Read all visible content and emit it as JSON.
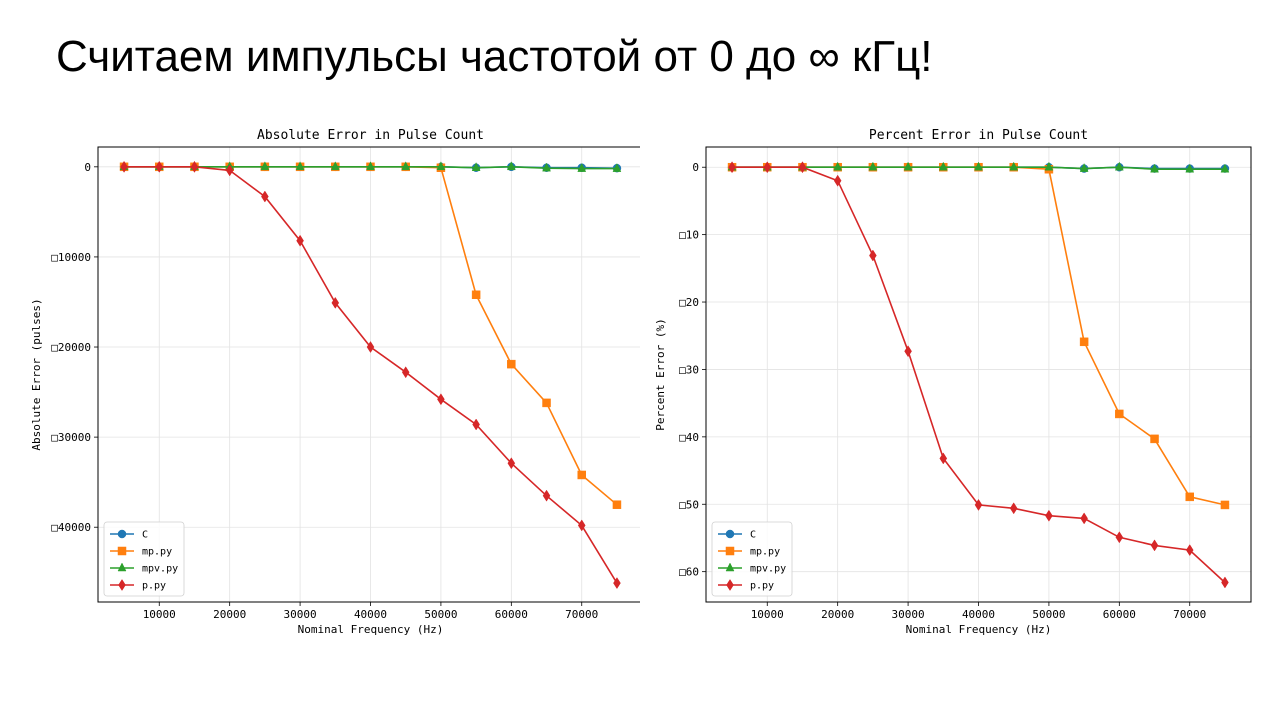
{
  "slide": {
    "title": "Считаем импульсы частотой от 0 до ∞ кГц!"
  },
  "colors": {
    "C": "#1f77b4",
    "mp.py": "#ff7f0e",
    "mpv.py": "#2ca02c",
    "p.py": "#d62728"
  },
  "chart_data": [
    {
      "type": "line",
      "title": "Absolute Error in Pulse Count",
      "xlabel": "Nominal Frequency (Hz)",
      "ylabel": "Absolute Error (pulses)",
      "xlim": [
        1300,
        78700
      ],
      "ylim": [
        -48300,
        2200
      ],
      "xticks": [
        10000,
        20000,
        30000,
        40000,
        50000,
        60000,
        70000
      ],
      "xtick_labels": [
        "10000",
        "20000",
        "30000",
        "40000",
        "50000",
        "60000",
        "70000"
      ],
      "yticks": [
        0,
        -10000,
        -20000,
        -30000,
        -40000
      ],
      "ytick_labels": [
        "0",
        "□10000",
        "□20000",
        "□30000",
        "□40000"
      ],
      "grid": true,
      "legend_position": "lower-left",
      "x": [
        5000,
        10000,
        15000,
        20000,
        25000,
        30000,
        35000,
        40000,
        45000,
        50000,
        55000,
        60000,
        65000,
        70000,
        75000
      ],
      "series": [
        {
          "name": "C",
          "marker": "circle",
          "values": [
            0,
            0,
            0,
            0,
            0,
            0,
            0,
            0,
            0,
            0,
            -100,
            0,
            -100,
            -100,
            -150
          ]
        },
        {
          "name": "mp.py",
          "marker": "square",
          "values": [
            0,
            0,
            0,
            0,
            0,
            0,
            0,
            0,
            0,
            -100,
            -14200,
            -21900,
            -26200,
            -34200,
            -37500
          ]
        },
        {
          "name": "mpv.py",
          "marker": "triangle",
          "values": [
            0,
            0,
            0,
            0,
            0,
            0,
            0,
            0,
            0,
            0,
            -100,
            0,
            -150,
            -200,
            -200
          ]
        },
        {
          "name": "p.py",
          "marker": "diamond",
          "values": [
            0,
            0,
            0,
            -400,
            -3300,
            -8200,
            -15100,
            -20000,
            -22800,
            -25800,
            -28600,
            -32900,
            -36500,
            -39800,
            -46200
          ]
        }
      ]
    },
    {
      "type": "line",
      "title": "Percent Error in Pulse Count",
      "xlabel": "Nominal Frequency (Hz)",
      "ylabel": "Percent Error (%)",
      "xlim": [
        1300,
        78700
      ],
      "ylim": [
        -64.5,
        3
      ],
      "xticks": [
        10000,
        20000,
        30000,
        40000,
        50000,
        60000,
        70000
      ],
      "xtick_labels": [
        "10000",
        "20000",
        "30000",
        "40000",
        "50000",
        "60000",
        "70000"
      ],
      "yticks": [
        0,
        -10,
        -20,
        -30,
        -40,
        -50,
        -60
      ],
      "ytick_labels": [
        "0",
        "□10",
        "□20",
        "□30",
        "□40",
        "□50",
        "□60"
      ],
      "grid": true,
      "legend_position": "lower-left",
      "x": [
        5000,
        10000,
        15000,
        20000,
        25000,
        30000,
        35000,
        40000,
        45000,
        50000,
        55000,
        60000,
        65000,
        70000,
        75000
      ],
      "series": [
        {
          "name": "C",
          "marker": "circle",
          "values": [
            0,
            0,
            0,
            0,
            0,
            0,
            0,
            0,
            0,
            0,
            -0.2,
            0,
            -0.2,
            -0.2,
            -0.2
          ]
        },
        {
          "name": "mp.py",
          "marker": "square",
          "values": [
            0,
            0,
            0,
            0,
            0,
            0,
            0,
            0,
            0,
            -0.3,
            -25.9,
            -36.6,
            -40.3,
            -48.9,
            -50.1
          ]
        },
        {
          "name": "mpv.py",
          "marker": "triangle",
          "values": [
            0,
            0,
            0,
            0,
            0,
            0,
            0,
            0,
            0,
            0,
            -0.2,
            0,
            -0.3,
            -0.3,
            -0.3
          ]
        },
        {
          "name": "p.py",
          "marker": "diamond",
          "values": [
            0,
            0,
            0,
            -2.0,
            -13.1,
            -27.3,
            -43.2,
            -50.1,
            -50.6,
            -51.7,
            -52.1,
            -54.9,
            -56.1,
            -56.8,
            -61.6
          ]
        }
      ]
    }
  ]
}
